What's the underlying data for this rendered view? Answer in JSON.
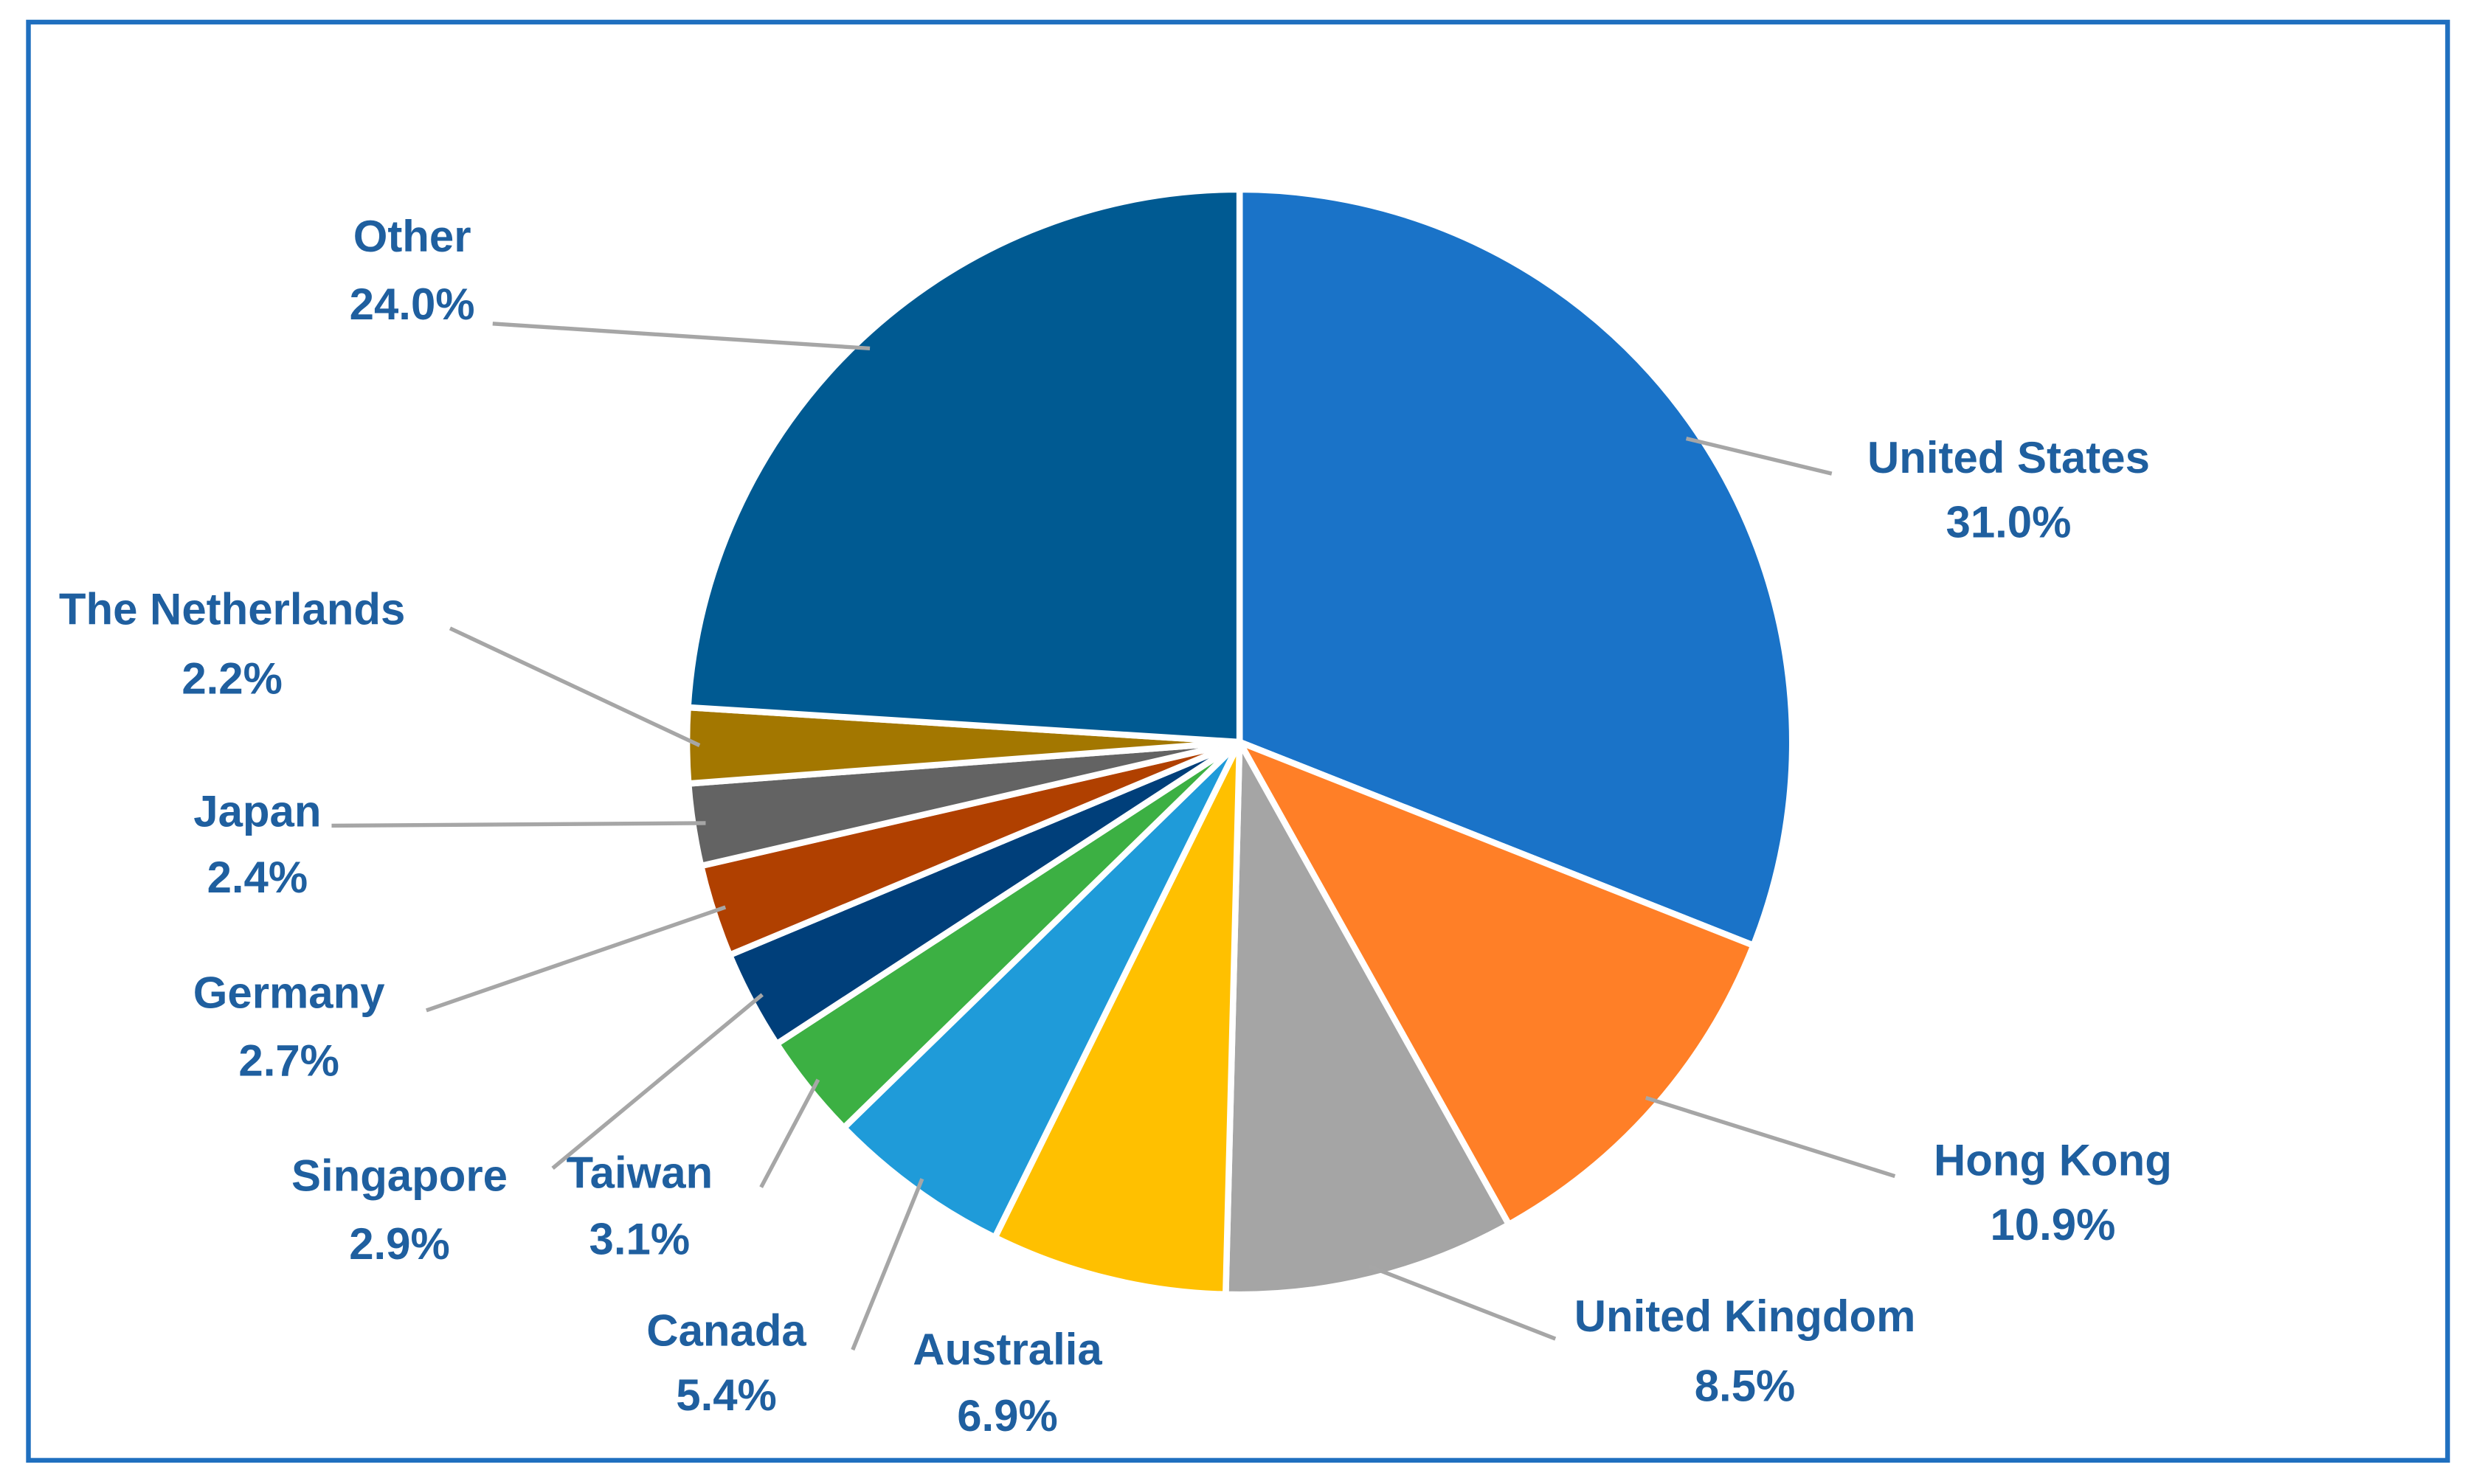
{
  "chart_data": {
    "type": "pie",
    "categories": [
      "United States",
      "Hong Kong",
      "United Kingdom",
      "Australia",
      "Canada",
      "Taiwan",
      "Singapore",
      "Germany",
      "Japan",
      "The Netherlands",
      "Other"
    ],
    "values": [
      31.0,
      10.9,
      8.5,
      6.9,
      5.4,
      3.1,
      2.9,
      2.7,
      2.4,
      2.2,
      24.0
    ],
    "value_labels": [
      "31.0%",
      "10.9%",
      "8.5%",
      "6.9%",
      "5.4%",
      "3.1%",
      "2.9%",
      "2.7%",
      "2.4%",
      "2.2%",
      "24.0%"
    ],
    "colors": [
      "#1a73c8",
      "#ff7f27",
      "#a5a5a5",
      "#ffc000",
      "#1f9bd9",
      "#3cb043",
      "#003f7a",
      "#b04000",
      "#636363",
      "#a37700",
      "#005a92"
    ]
  }
}
